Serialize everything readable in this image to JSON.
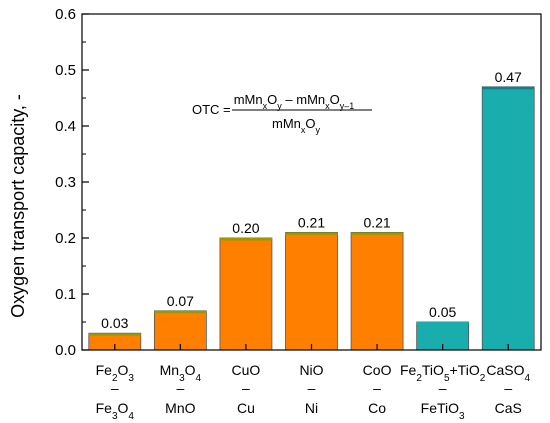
{
  "chart_data": {
    "type": "bar",
    "title": "",
    "xlabel": "",
    "ylabel": "Oxygen transport capacity, -",
    "ylim": [
      0,
      0.6
    ],
    "yticks": [
      "0.0",
      "0.1",
      "0.2",
      "0.3",
      "0.4",
      "0.5",
      "0.6"
    ],
    "grid": false,
    "categories": [
      {
        "top": "Fe2O3",
        "dash": "–",
        "bottom": "Fe3O4"
      },
      {
        "top": "Mn3O4",
        "dash": "–",
        "bottom": "MnO"
      },
      {
        "top": "CuO",
        "dash": "–",
        "bottom": "Cu"
      },
      {
        "top": "NiO",
        "dash": "–",
        "bottom": "Ni"
      },
      {
        "top": "CoO",
        "dash": "–",
        "bottom": "Co"
      },
      {
        "top": "Fe2TiO5+TiO2",
        "dash": "–",
        "bottom": "FeTiO3"
      },
      {
        "top": "CaSO4",
        "dash": "–",
        "bottom": "CaS"
      }
    ],
    "values": [
      0.03,
      0.07,
      0.2,
      0.21,
      0.21,
      0.05,
      0.47
    ],
    "data_labels": [
      "0.03",
      "0.07",
      "0.20",
      "0.21",
      "0.21",
      "0.05",
      "0.47"
    ],
    "bar_colors": [
      "#ff8000",
      "#ff8000",
      "#ff8000",
      "#ff8000",
      "#ff8000",
      "#1aadad",
      "#1aadad"
    ],
    "top_edge_colors": [
      "#9a9a00",
      "#9a9a00",
      "#9a9a00",
      "#9a9a00",
      "#9a9a00",
      "#1aadad",
      "#147f8a"
    ],
    "annotation": {
      "lhs": "OTC =",
      "numerator": "mMnxOy – mMnxOy–1",
      "denominator": "mMnxOy"
    }
  }
}
